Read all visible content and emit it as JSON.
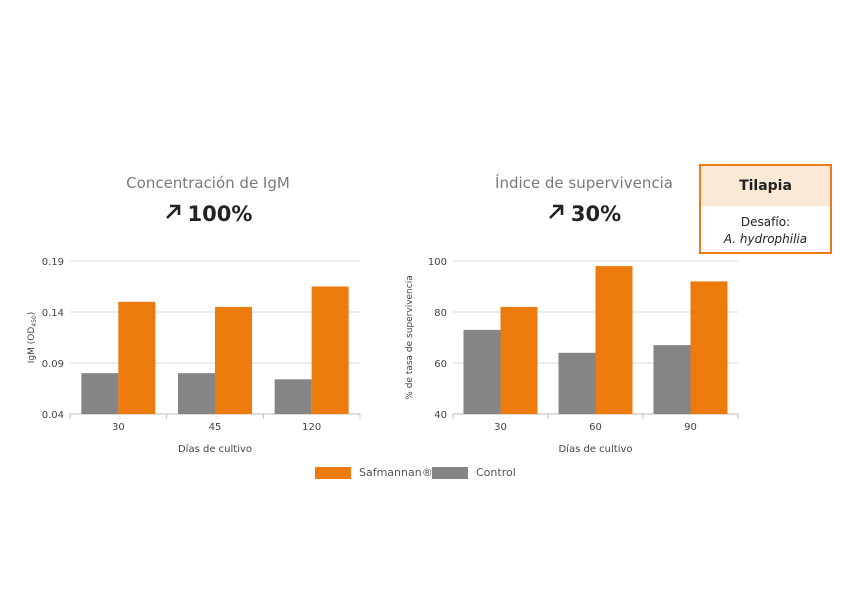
{
  "colors": {
    "safmannan": "#ec7a0c",
    "control": "#858585",
    "grid": "#d9d9d9"
  },
  "chart_data": [
    {
      "type": "bar",
      "title": "Concentración de IgM",
      "trend": "100%",
      "trend_icon": "arrow-up-right-icon",
      "xlabel": "Días de cultivo",
      "ylabel": "IgM (OD",
      "ylabel_sub": "450",
      "ylabel_end": ")",
      "categories": [
        "30",
        "45",
        "120"
      ],
      "ylim": [
        0.04,
        0.19
      ],
      "yticks": [
        "0.04",
        "0.09",
        "0.14",
        "0.19"
      ],
      "series": [
        {
          "name": "Control",
          "values": [
            0.08,
            0.08,
            0.074
          ]
        },
        {
          "name": "Safmannan®",
          "values": [
            0.15,
            0.145,
            0.165
          ]
        }
      ],
      "grid": true
    },
    {
      "type": "bar",
      "title": "Índice de supervivencia",
      "trend": "30%",
      "trend_icon": "arrow-up-right-icon",
      "xlabel": "Días de cultivo",
      "ylabel": "% de tasa de supervivencia",
      "categories": [
        "30",
        "60",
        "90"
      ],
      "ylim": [
        40,
        100
      ],
      "yticks": [
        "40",
        "60",
        "80",
        "100"
      ],
      "series": [
        {
          "name": "Control",
          "values": [
            73,
            64,
            67
          ]
        },
        {
          "name": "Safmannan®",
          "values": [
            82,
            98,
            92
          ]
        }
      ],
      "grid": true
    }
  ],
  "infobox": {
    "title": "Tilapia",
    "line1": "Desafío:",
    "line2": "A. hydrophilia"
  },
  "legend": {
    "safmannan": "Safmannan®",
    "control": "Control"
  }
}
